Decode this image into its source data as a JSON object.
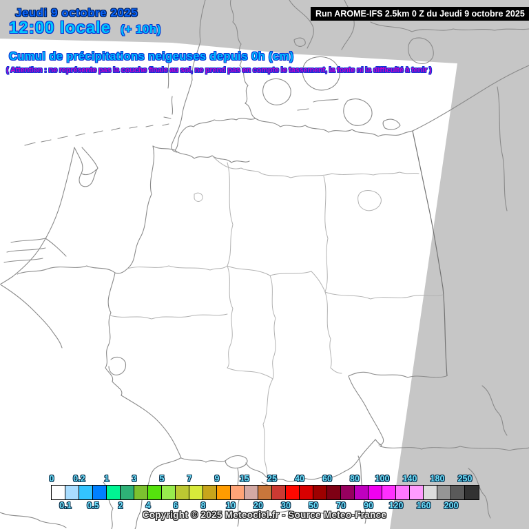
{
  "header": {
    "date_line": "Jeudi 9 octobre 2025",
    "time_line": "12:00 locale",
    "time_offset": "(+ 10h)",
    "run_info": "Run AROME-IFS 2.5km 0 Z du Jeudi 9 octobre 2025"
  },
  "map": {
    "title": "Cumul de précipitations neigeuses depuis 0h (cm)",
    "warning": "( Attention : ne représente pas la couche finale au sol, ne prend pas en compte le tassement, la fonte ni la difficulté à tenir )"
  },
  "legend": {
    "unit": "cm",
    "cells": [
      {
        "label": "0",
        "color": "#FFFFFF"
      },
      {
        "label": "0.1",
        "color": "#A9DDFF"
      },
      {
        "label": "0.2",
        "color": "#33C4FF"
      },
      {
        "label": "0.5",
        "color": "#0080FF"
      },
      {
        "label": "1",
        "color": "#00F593"
      },
      {
        "label": "2",
        "color": "#2EB277"
      },
      {
        "label": "3",
        "color": "#7CC12F"
      },
      {
        "label": "4",
        "color": "#55E20D"
      },
      {
        "label": "5",
        "color": "#98EC4D"
      },
      {
        "label": "6",
        "color": "#BCC832"
      },
      {
        "label": "7",
        "color": "#D7E93A"
      },
      {
        "label": "8",
        "color": "#C8A51B"
      },
      {
        "label": "9",
        "color": "#FF9C00"
      },
      {
        "label": "10",
        "color": "#FFA477"
      },
      {
        "label": "15",
        "color": "#D3A9A4"
      },
      {
        "label": "20",
        "color": "#C8763B"
      },
      {
        "label": "25",
        "color": "#CC3A33"
      },
      {
        "label": "30",
        "color": "#FF0800"
      },
      {
        "label": "40",
        "color": "#D80000"
      },
      {
        "label": "50",
        "color": "#9E0000"
      },
      {
        "label": "60",
        "color": "#7E0014"
      },
      {
        "label": "70",
        "color": "#97005F"
      },
      {
        "label": "80",
        "color": "#BF00BF"
      },
      {
        "label": "90",
        "color": "#F000F0"
      },
      {
        "label": "100",
        "color": "#FF30FF"
      },
      {
        "label": "120",
        "color": "#FF77FF"
      },
      {
        "label": "140",
        "color": "#FF9BFF"
      },
      {
        "label": "160",
        "color": "#DCDCDC"
      },
      {
        "label": "180",
        "color": "#969696"
      },
      {
        "label": "200",
        "color": "#5A5A5A"
      },
      {
        "label": "250",
        "color": "#323232"
      }
    ]
  },
  "footer": {
    "copyright": "Copyright © 2025 Meteociel.fr - Source Meteo-France"
  },
  "colors": {
    "outside_domain_gray": "#C6C6C6",
    "domain_white": "#FFFFFF",
    "date_blue": "#0A64FA",
    "time_cyan": "#00C8FF",
    "title_cyan": "#00BDFF",
    "warning_magenta": "#C800C8",
    "legend_label_cyan": "#6FE4FF",
    "run_box_black": "#000000"
  }
}
